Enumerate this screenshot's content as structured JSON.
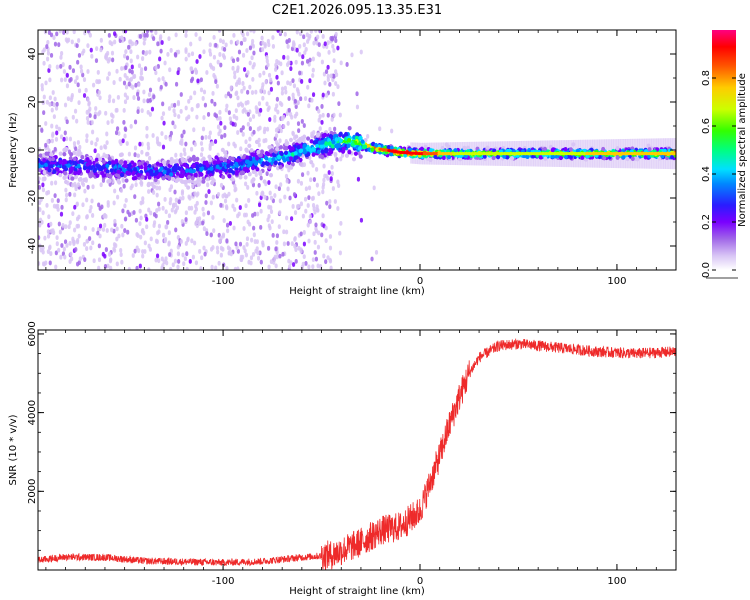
{
  "title": "C2E1.2026.095.13.35.E31",
  "colors": {
    "snr_line": "#ee2a2a",
    "axis": "#000000",
    "colormap": [
      "#ffffff",
      "#d8c4f5",
      "#a066e8",
      "#7a00ff",
      "#2a1cff",
      "#0088ff",
      "#00e0ff",
      "#00ff80",
      "#33ff00",
      "#ccff00",
      "#ffcc00",
      "#ff5500",
      "#ff0000",
      "#ff0080"
    ]
  },
  "chart_data": [
    {
      "type": "heatmap",
      "name": "spectrogram",
      "xlabel": "Height of straight line (km)",
      "ylabel": "Frequency (Hz)",
      "xlim": [
        -194,
        130
      ],
      "ylim": [
        -50,
        50
      ],
      "xticks": [
        -100,
        0,
        100
      ],
      "xtick_labels": [
        "-100",
        "0",
        "100"
      ],
      "yticks": [
        -40,
        -20,
        0,
        20,
        40
      ],
      "ytick_labels": [
        "-40",
        "-20",
        "0",
        "20",
        "40"
      ],
      "ridge": {
        "x": [
          -194,
          -170,
          -150,
          -130,
          -110,
          -90,
          -70,
          -50,
          -35,
          -25,
          -10,
          0,
          20,
          60,
          100,
          130
        ],
        "freq": [
          -6,
          -7,
          -8,
          -9,
          -8,
          -6,
          -3,
          2,
          4,
          1,
          -1,
          -1.5,
          -1.5,
          -1.5,
          -1.5,
          -1.5
        ],
        "amplitude": [
          0.35,
          0.35,
          0.35,
          0.35,
          0.35,
          0.4,
          0.45,
          0.5,
          0.6,
          0.8,
          0.95,
          0.9,
          0.7,
          0.7,
          0.75,
          0.8
        ]
      },
      "colorbar": {
        "label": "Normalized spectral amplitude",
        "range": [
          0,
          1
        ],
        "ticks": [
          0.0,
          0.2,
          0.4,
          0.6,
          0.8
        ],
        "tick_labels": [
          "0.0",
          "0.2",
          "0.4",
          "0.6",
          "0.8"
        ]
      }
    },
    {
      "type": "line",
      "name": "snr",
      "xlabel": "Height of straight line (km)",
      "ylabel": "SNR (10 * v/v)",
      "xlim": [
        -194,
        130
      ],
      "ylim": [
        0,
        6100
      ],
      "xticks": [
        -100,
        0,
        100
      ],
      "xtick_labels": [
        "-100",
        "0",
        "100"
      ],
      "yticks": [
        2000,
        4000,
        6000
      ],
      "ytick_labels": [
        "2000",
        "4000",
        "6000"
      ],
      "trend": {
        "x": [
          -194,
          -180,
          -160,
          -140,
          -120,
          -100,
          -80,
          -60,
          -45,
          -30,
          -20,
          -10,
          0,
          5,
          10,
          15,
          20,
          25,
          30,
          40,
          50,
          70,
          90,
          110,
          130
        ],
        "y": [
          250,
          330,
          320,
          230,
          210,
          190,
          220,
          320,
          380,
          700,
          1000,
          1100,
          1500,
          2200,
          2900,
          3700,
          4400,
          5000,
          5400,
          5700,
          5750,
          5650,
          5550,
          5500,
          5550
        ]
      }
    }
  ]
}
